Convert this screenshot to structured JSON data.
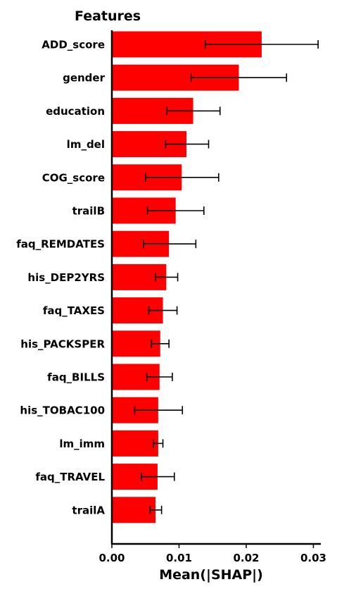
{
  "chart_data": {
    "type": "bar",
    "orientation": "horizontal",
    "title": "Features",
    "xlabel": "Mean(|SHAP|)",
    "ylabel": "",
    "categories": [
      "ADD_score",
      "gender",
      "education",
      "lm_del",
      "COG_score",
      "trailB",
      "faq_REMDATES",
      "his_DEP2YRS",
      "faq_TAXES",
      "his_PACKSPER",
      "faq_BILLS",
      "his_TOBAC100",
      "lm_imm",
      "faq_TRAVEL",
      "trailA"
    ],
    "values": [
      0.0223,
      0.0189,
      0.0121,
      0.0111,
      0.0104,
      0.0095,
      0.0085,
      0.0081,
      0.0076,
      0.0072,
      0.0071,
      0.0069,
      0.0069,
      0.0068,
      0.0065
    ],
    "error_low": [
      0.0139,
      0.0118,
      0.0082,
      0.008,
      0.005,
      0.0053,
      0.0047,
      0.0065,
      0.0055,
      0.0059,
      0.0052,
      0.0034,
      0.0062,
      0.0044,
      0.0057
    ],
    "error_high": [
      0.0307,
      0.026,
      0.0161,
      0.0144,
      0.0159,
      0.0137,
      0.0125,
      0.0098,
      0.0097,
      0.0085,
      0.009,
      0.0105,
      0.0076,
      0.0093,
      0.0074
    ],
    "xlim": [
      0.0,
      0.031
    ],
    "xticks": [
      0.0,
      0.01,
      0.02,
      0.03
    ],
    "xtick_labels": [
      "0.00",
      "0.01",
      "0.02",
      "0.03"
    ],
    "grid": false,
    "bar_color": "#ff0000",
    "errorbar_color": "#000000"
  }
}
